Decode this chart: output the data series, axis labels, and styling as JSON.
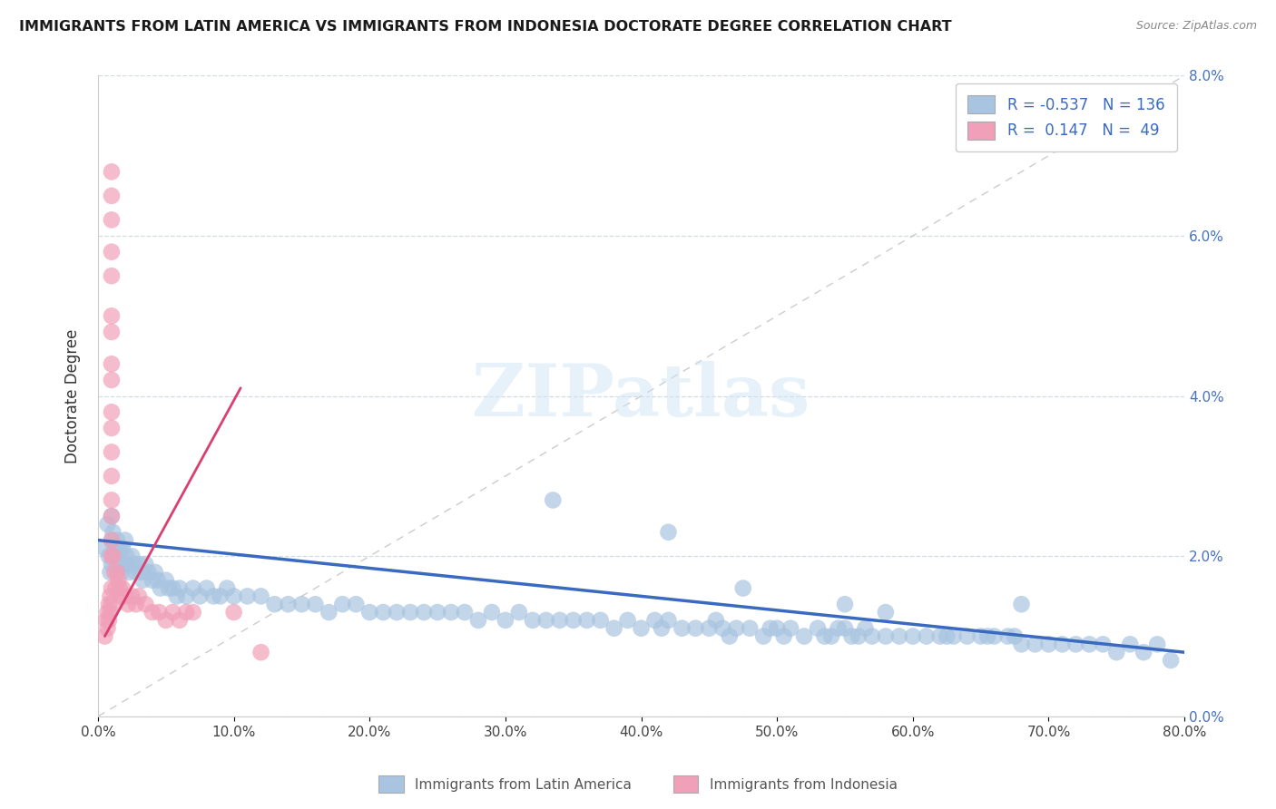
{
  "title": "IMMIGRANTS FROM LATIN AMERICA VS IMMIGRANTS FROM INDONESIA DOCTORATE DEGREE CORRELATION CHART",
  "source": "Source: ZipAtlas.com",
  "ylabel": "Doctorate Degree",
  "xlim": [
    0.0,
    0.8
  ],
  "ylim": [
    0.0,
    0.08
  ],
  "color_blue": "#a8c4e0",
  "color_pink": "#f0a0b8",
  "line_blue": "#3a6abf",
  "line_pink": "#d94070",
  "legend_label1": "Immigrants from Latin America",
  "legend_label2": "Immigrants from Indonesia",
  "blue_trend_x": [
    0.0,
    0.8
  ],
  "blue_trend_y": [
    0.022,
    0.008
  ],
  "pink_trend_x": [
    0.005,
    0.105
  ],
  "pink_trend_y": [
    0.01,
    0.041
  ],
  "blue_scatter": [
    [
      0.005,
      0.021
    ],
    [
      0.007,
      0.024
    ],
    [
      0.008,
      0.02
    ],
    [
      0.009,
      0.018
    ],
    [
      0.01,
      0.025
    ],
    [
      0.01,
      0.022
    ],
    [
      0.01,
      0.019
    ],
    [
      0.011,
      0.023
    ],
    [
      0.012,
      0.021
    ],
    [
      0.013,
      0.02
    ],
    [
      0.014,
      0.022
    ],
    [
      0.015,
      0.019
    ],
    [
      0.015,
      0.021
    ],
    [
      0.016,
      0.02
    ],
    [
      0.017,
      0.018
    ],
    [
      0.018,
      0.021
    ],
    [
      0.019,
      0.019
    ],
    [
      0.02,
      0.022
    ],
    [
      0.021,
      0.02
    ],
    [
      0.022,
      0.019
    ],
    [
      0.023,
      0.018
    ],
    [
      0.025,
      0.02
    ],
    [
      0.026,
      0.019
    ],
    [
      0.028,
      0.018
    ],
    [
      0.03,
      0.019
    ],
    [
      0.032,
      0.018
    ],
    [
      0.033,
      0.017
    ],
    [
      0.035,
      0.019
    ],
    [
      0.037,
      0.018
    ],
    [
      0.04,
      0.017
    ],
    [
      0.042,
      0.018
    ],
    [
      0.044,
      0.017
    ],
    [
      0.046,
      0.016
    ],
    [
      0.05,
      0.017
    ],
    [
      0.052,
      0.016
    ],
    [
      0.055,
      0.016
    ],
    [
      0.058,
      0.015
    ],
    [
      0.06,
      0.016
    ],
    [
      0.065,
      0.015
    ],
    [
      0.07,
      0.016
    ],
    [
      0.075,
      0.015
    ],
    [
      0.08,
      0.016
    ],
    [
      0.085,
      0.015
    ],
    [
      0.09,
      0.015
    ],
    [
      0.095,
      0.016
    ],
    [
      0.1,
      0.015
    ],
    [
      0.11,
      0.015
    ],
    [
      0.12,
      0.015
    ],
    [
      0.13,
      0.014
    ],
    [
      0.14,
      0.014
    ],
    [
      0.15,
      0.014
    ],
    [
      0.16,
      0.014
    ],
    [
      0.17,
      0.013
    ],
    [
      0.18,
      0.014
    ],
    [
      0.19,
      0.014
    ],
    [
      0.2,
      0.013
    ],
    [
      0.21,
      0.013
    ],
    [
      0.22,
      0.013
    ],
    [
      0.23,
      0.013
    ],
    [
      0.24,
      0.013
    ],
    [
      0.25,
      0.013
    ],
    [
      0.26,
      0.013
    ],
    [
      0.27,
      0.013
    ],
    [
      0.28,
      0.012
    ],
    [
      0.29,
      0.013
    ],
    [
      0.3,
      0.012
    ],
    [
      0.31,
      0.013
    ],
    [
      0.32,
      0.012
    ],
    [
      0.33,
      0.012
    ],
    [
      0.34,
      0.012
    ],
    [
      0.35,
      0.012
    ],
    [
      0.36,
      0.012
    ],
    [
      0.37,
      0.012
    ],
    [
      0.38,
      0.011
    ],
    [
      0.39,
      0.012
    ],
    [
      0.4,
      0.011
    ],
    [
      0.41,
      0.012
    ],
    [
      0.415,
      0.011
    ],
    [
      0.42,
      0.012
    ],
    [
      0.43,
      0.011
    ],
    [
      0.44,
      0.011
    ],
    [
      0.45,
      0.011
    ],
    [
      0.455,
      0.012
    ],
    [
      0.46,
      0.011
    ],
    [
      0.465,
      0.01
    ],
    [
      0.47,
      0.011
    ],
    [
      0.48,
      0.011
    ],
    [
      0.49,
      0.01
    ],
    [
      0.495,
      0.011
    ],
    [
      0.5,
      0.011
    ],
    [
      0.505,
      0.01
    ],
    [
      0.51,
      0.011
    ],
    [
      0.52,
      0.01
    ],
    [
      0.53,
      0.011
    ],
    [
      0.535,
      0.01
    ],
    [
      0.54,
      0.01
    ],
    [
      0.545,
      0.011
    ],
    [
      0.55,
      0.011
    ],
    [
      0.555,
      0.01
    ],
    [
      0.56,
      0.01
    ],
    [
      0.565,
      0.011
    ],
    [
      0.57,
      0.01
    ],
    [
      0.58,
      0.01
    ],
    [
      0.59,
      0.01
    ],
    [
      0.6,
      0.01
    ],
    [
      0.61,
      0.01
    ],
    [
      0.62,
      0.01
    ],
    [
      0.625,
      0.01
    ],
    [
      0.63,
      0.01
    ],
    [
      0.64,
      0.01
    ],
    [
      0.65,
      0.01
    ],
    [
      0.655,
      0.01
    ],
    [
      0.66,
      0.01
    ],
    [
      0.67,
      0.01
    ],
    [
      0.675,
      0.01
    ],
    [
      0.68,
      0.009
    ],
    [
      0.69,
      0.009
    ],
    [
      0.7,
      0.009
    ],
    [
      0.71,
      0.009
    ],
    [
      0.72,
      0.009
    ],
    [
      0.73,
      0.009
    ],
    [
      0.74,
      0.009
    ],
    [
      0.75,
      0.008
    ],
    [
      0.76,
      0.009
    ],
    [
      0.77,
      0.008
    ],
    [
      0.78,
      0.009
    ],
    [
      0.335,
      0.027
    ],
    [
      0.42,
      0.023
    ],
    [
      0.475,
      0.016
    ],
    [
      0.55,
      0.014
    ],
    [
      0.58,
      0.013
    ],
    [
      0.68,
      0.014
    ],
    [
      0.79,
      0.007
    ]
  ],
  "pink_scatter": [
    [
      0.005,
      0.01
    ],
    [
      0.006,
      0.012
    ],
    [
      0.007,
      0.011
    ],
    [
      0.007,
      0.013
    ],
    [
      0.008,
      0.012
    ],
    [
      0.008,
      0.014
    ],
    [
      0.009,
      0.013
    ],
    [
      0.009,
      0.015
    ],
    [
      0.01,
      0.014
    ],
    [
      0.01,
      0.016
    ],
    [
      0.01,
      0.02
    ],
    [
      0.01,
      0.022
    ],
    [
      0.01,
      0.025
    ],
    [
      0.01,
      0.027
    ],
    [
      0.01,
      0.03
    ],
    [
      0.01,
      0.033
    ],
    [
      0.01,
      0.036
    ],
    [
      0.01,
      0.038
    ],
    [
      0.01,
      0.042
    ],
    [
      0.01,
      0.044
    ],
    [
      0.01,
      0.048
    ],
    [
      0.01,
      0.05
    ],
    [
      0.01,
      0.055
    ],
    [
      0.01,
      0.058
    ],
    [
      0.01,
      0.062
    ],
    [
      0.01,
      0.065
    ],
    [
      0.01,
      0.068
    ],
    [
      0.011,
      0.02
    ],
    [
      0.012,
      0.018
    ],
    [
      0.013,
      0.016
    ],
    [
      0.014,
      0.018
    ],
    [
      0.015,
      0.017
    ],
    [
      0.016,
      0.016
    ],
    [
      0.017,
      0.015
    ],
    [
      0.018,
      0.016
    ],
    [
      0.02,
      0.015
    ],
    [
      0.022,
      0.014
    ],
    [
      0.025,
      0.015
    ],
    [
      0.028,
      0.014
    ],
    [
      0.03,
      0.015
    ],
    [
      0.035,
      0.014
    ],
    [
      0.04,
      0.013
    ],
    [
      0.045,
      0.013
    ],
    [
      0.05,
      0.012
    ],
    [
      0.055,
      0.013
    ],
    [
      0.06,
      0.012
    ],
    [
      0.065,
      0.013
    ],
    [
      0.07,
      0.013
    ],
    [
      0.1,
      0.013
    ],
    [
      0.12,
      0.008
    ]
  ]
}
